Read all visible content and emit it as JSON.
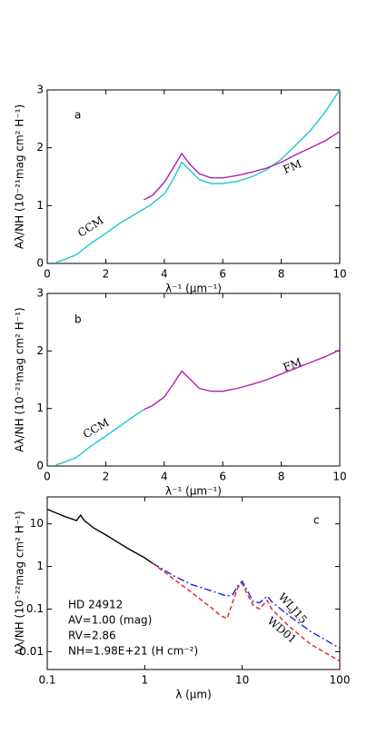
{
  "chart_data": [
    {
      "type": "line",
      "panel_label": "a",
      "x_label": "λ⁻¹ (μm⁻¹)",
      "y_label": "Aλ/NH (10⁻²¹mag cm² H⁻¹)",
      "xlim": [
        0,
        10
      ],
      "xticks": [
        0,
        2,
        4,
        6,
        8,
        10
      ],
      "ylim": [
        0,
        3
      ],
      "yticks": [
        0,
        1,
        2,
        3
      ],
      "series": [
        {
          "name": "CCM",
          "color": "#1ec8c8",
          "x": [
            0.3,
            0.5,
            1,
            1.5,
            2,
            2.5,
            3,
            3.5,
            4,
            4.3,
            4.6,
            4.9,
            5.2,
            5.6,
            6,
            6.5,
            7,
            7.5,
            8,
            8.5,
            9,
            9.5,
            10
          ],
          "values": [
            0.02,
            0.05,
            0.15,
            0.35,
            0.52,
            0.7,
            0.85,
            1.0,
            1.2,
            1.45,
            1.75,
            1.6,
            1.45,
            1.38,
            1.38,
            1.42,
            1.5,
            1.62,
            1.8,
            2.05,
            2.3,
            2.62,
            3.0
          ]
        },
        {
          "name": "FM",
          "color": "#b41eb4",
          "x": [
            3.3,
            3.6,
            4,
            4.3,
            4.6,
            4.9,
            5.2,
            5.6,
            6,
            6.5,
            7,
            7.5,
            8,
            8.5,
            9,
            9.5,
            10
          ],
          "values": [
            1.1,
            1.18,
            1.4,
            1.65,
            1.9,
            1.7,
            1.55,
            1.48,
            1.48,
            1.52,
            1.58,
            1.65,
            1.75,
            1.88,
            2.0,
            2.12,
            2.28
          ]
        }
      ]
    },
    {
      "type": "line",
      "panel_label": "b",
      "x_label": "λ⁻¹ (μm⁻¹)",
      "y_label": "Aλ/NH (10⁻²¹mag cm² H⁻¹)",
      "xlim": [
        0,
        10
      ],
      "xticks": [
        0,
        2,
        4,
        6,
        8,
        10
      ],
      "ylim": [
        0,
        3
      ],
      "yticks": [
        0,
        1,
        2,
        3
      ],
      "series": [
        {
          "name": "CCM",
          "color": "#1ec8c8",
          "x": [
            0.3,
            0.5,
            1,
            1.5,
            2,
            2.5,
            3,
            3.3
          ],
          "values": [
            0.02,
            0.05,
            0.15,
            0.35,
            0.52,
            0.7,
            0.88,
            0.98
          ]
        },
        {
          "name": "FM",
          "color": "#b41eb4",
          "x": [
            3.3,
            3.6,
            4,
            4.3,
            4.6,
            4.9,
            5.2,
            5.6,
            6,
            6.5,
            7,
            7.5,
            8,
            8.5,
            9,
            9.5,
            10
          ],
          "values": [
            0.98,
            1.05,
            1.2,
            1.42,
            1.65,
            1.5,
            1.35,
            1.3,
            1.3,
            1.35,
            1.42,
            1.5,
            1.6,
            1.7,
            1.8,
            1.9,
            2.02
          ]
        }
      ]
    },
    {
      "type": "line",
      "panel_label": "c",
      "x_label": "λ (μm)",
      "y_label": "Aλ/NH (10⁻²²mag cm² H⁻¹)",
      "xlog": true,
      "ylog": true,
      "xlim": [
        0.1,
        100
      ],
      "xticks": [
        0.1,
        1,
        10,
        100
      ],
      "ylim": [
        0.0038,
        43
      ],
      "yticks": [
        0.01,
        0.1,
        1,
        10
      ],
      "annotations": [
        "HD 24912",
        "AV=1.00 (mag)",
        "RV=2.86",
        "NH=1.98E+21 (H cm⁻²)"
      ],
      "series": [
        {
          "color": "#000000",
          "x": [
            0.1,
            0.15,
            0.2,
            0.22,
            0.24,
            0.3,
            0.4,
            0.5,
            0.7,
            1,
            1.2
          ],
          "values": [
            22,
            15,
            12,
            16,
            12,
            8,
            5.5,
            4,
            2.5,
            1.6,
            1.2
          ]
        },
        {
          "name": "WLJ15",
          "color": "#1e1ee6",
          "dash": "8 3 2 3",
          "x": [
            1.2,
            2,
            3,
            5,
            7,
            8,
            9,
            10,
            11,
            13,
            15,
            18,
            20,
            30,
            50,
            100
          ],
          "values": [
            1.2,
            0.6,
            0.38,
            0.26,
            0.2,
            0.22,
            0.35,
            0.45,
            0.3,
            0.15,
            0.14,
            0.2,
            0.15,
            0.07,
            0.03,
            0.012
          ]
        },
        {
          "name": "WD01",
          "color": "#e61e1e",
          "dash": "5 3",
          "x": [
            1.2,
            2,
            3,
            5,
            6,
            7,
            8,
            9,
            10,
            11,
            13,
            15,
            18,
            20,
            30,
            50,
            100
          ],
          "values": [
            1.2,
            0.5,
            0.25,
            0.1,
            0.07,
            0.06,
            0.15,
            0.32,
            0.4,
            0.25,
            0.12,
            0.1,
            0.16,
            0.1,
            0.04,
            0.015,
            0.006
          ]
        }
      ]
    }
  ]
}
